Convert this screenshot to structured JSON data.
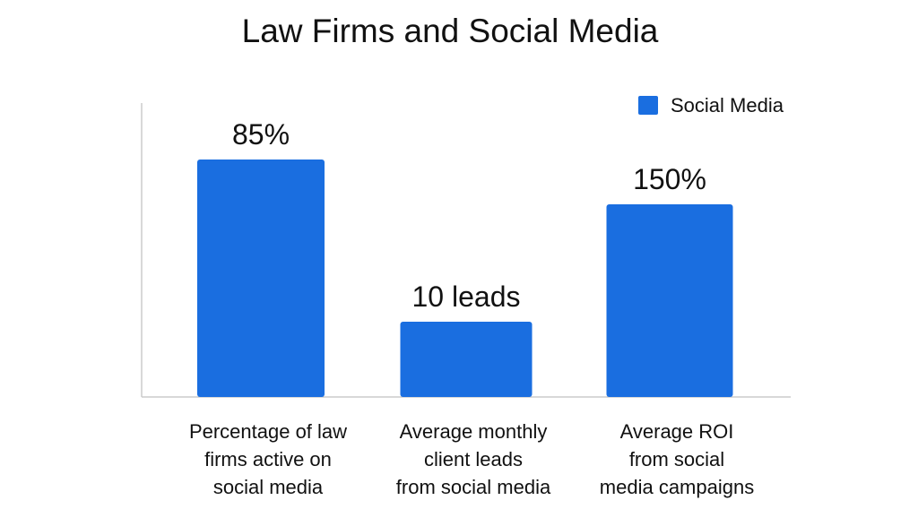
{
  "chart_data": {
    "type": "bar",
    "title": "Law Firms and Social Media",
    "categories": [
      "Percentage of law firms active on social media",
      "Average monthly client leads from social media",
      "Average ROI from social media campaigns"
    ],
    "category_lines": [
      [
        "Percentage of law",
        "firms active on",
        "social media"
      ],
      [
        "Average monthly",
        "client leads",
        "from social media"
      ],
      [
        "Average ROI",
        "from social",
        "media campaigns"
      ]
    ],
    "series": [
      {
        "name": "Social Media",
        "values": [
          85,
          10,
          150
        ],
        "units": [
          "%",
          "leads",
          "%"
        ],
        "color": "#1a6ee0"
      }
    ],
    "data_labels": [
      "85%",
      "10 leads",
      "150%"
    ],
    "legend": {
      "position": "top-right",
      "entries": [
        "Social Media"
      ]
    },
    "grid": false,
    "y_axis_ticks": false
  }
}
